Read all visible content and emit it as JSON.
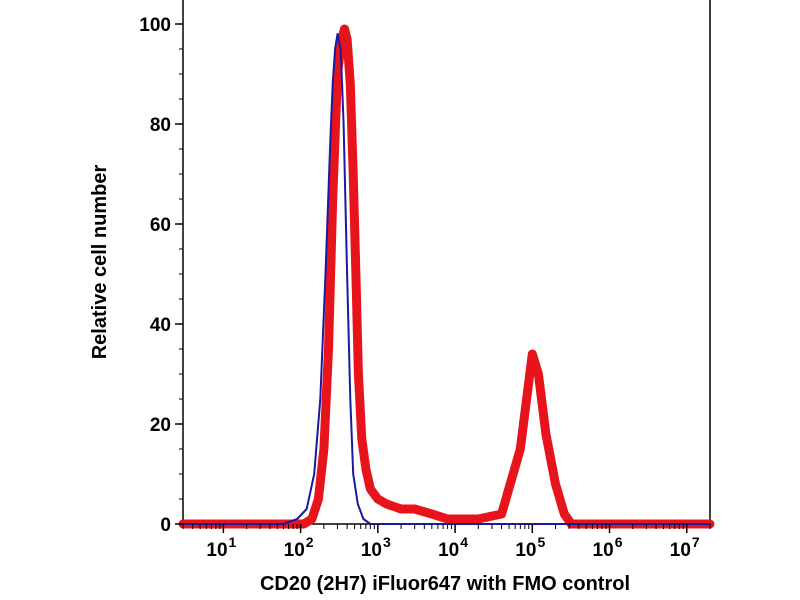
{
  "chart_data": {
    "type": "line",
    "title": "",
    "xlabel": "CD20 (2H7) iFluor647 with FMO control",
    "ylabel": "Relative cell number",
    "xscale": "log",
    "xlim": [
      3,
      20000000
    ],
    "ylim": [
      0,
      100
    ],
    "yticks": [
      0,
      20,
      40,
      60,
      80,
      100
    ],
    "xticks": [
      {
        "base": "10",
        "exp": "1",
        "value": 10
      },
      {
        "base": "10",
        "exp": "2",
        "value": 100
      },
      {
        "base": "10",
        "exp": "3",
        "value": 1000
      },
      {
        "base": "10",
        "exp": "4",
        "value": 10000
      },
      {
        "base": "10",
        "exp": "5",
        "value": 100000
      },
      {
        "base": "10",
        "exp": "6",
        "value": 1000000
      },
      {
        "base": "10",
        "exp": "7",
        "value": 10000000
      }
    ],
    "grid": false,
    "series": [
      {
        "name": "CD20 (2H7) iFluor647",
        "color": "#e8141c",
        "x": [
          3,
          40,
          80,
          110,
          140,
          170,
          200,
          230,
          260,
          300,
          340,
          370,
          400,
          440,
          480,
          520,
          560,
          620,
          700,
          800,
          1000,
          1300,
          2000,
          3000,
          5000,
          8000,
          12000,
          20000,
          40000,
          70000,
          100000,
          120000,
          150000,
          200000,
          260000,
          320000,
          400000,
          500000,
          20000000
        ],
        "values": [
          0,
          0,
          0,
          0,
          1,
          5,
          15,
          35,
          65,
          90,
          97,
          99,
          97,
          88,
          70,
          50,
          30,
          17,
          11,
          7,
          5,
          4,
          3,
          3,
          2,
          1,
          1,
          1,
          2,
          15,
          34,
          30,
          18,
          8,
          2,
          0,
          0,
          0,
          0
        ]
      },
      {
        "name": "FMO control",
        "color": "#1a1aa0",
        "x": [
          3,
          60,
          90,
          120,
          150,
          180,
          210,
          240,
          260,
          280,
          300,
          330,
          360,
          400,
          440,
          480,
          550,
          650,
          800,
          20000000
        ],
        "values": [
          0,
          0,
          1,
          3,
          10,
          25,
          50,
          75,
          88,
          95,
          98,
          95,
          80,
          50,
          25,
          10,
          4,
          1,
          0,
          0
        ]
      }
    ]
  }
}
